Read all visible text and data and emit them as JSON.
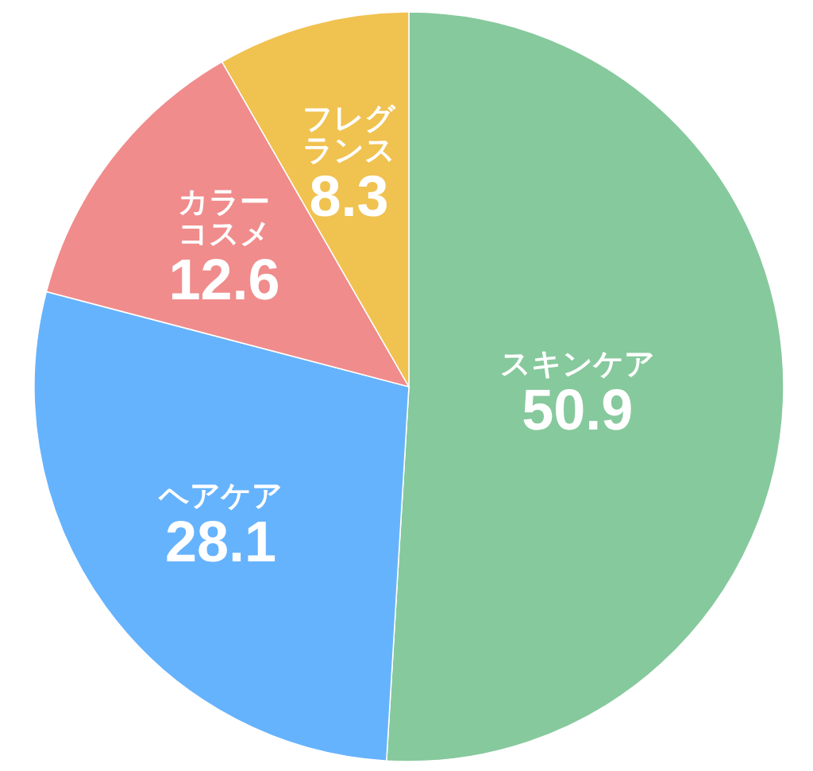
{
  "chart_data": {
    "type": "pie",
    "categories": [
      "スキンケア",
      "ヘアケア",
      "カラーコスメ",
      "フレグランス"
    ],
    "values": [
      50.9,
      28.1,
      12.6,
      8.3
    ],
    "colors": [
      "#86c99d",
      "#66b3fd",
      "#f08c8c",
      "#f0c250"
    ],
    "data_labels": true
  }
}
